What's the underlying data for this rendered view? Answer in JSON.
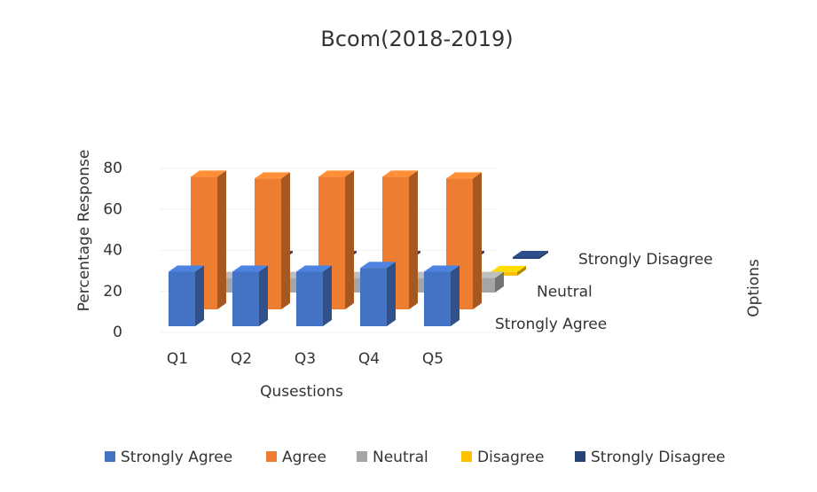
{
  "chart_data": {
    "type": "bar3d",
    "title": "Bcom(2018-2019)",
    "y_label": "Percentage Response",
    "x_label": "Qusestions",
    "z_label": "Options",
    "categories": [
      "Q1",
      "Q2",
      "Q3",
      "Q4",
      "Q5"
    ],
    "depth_labels": [
      "Strongly Agree",
      null,
      "Neutral",
      null,
      "Strongly Disagree"
    ],
    "series": [
      {
        "name": "Strongly Agree",
        "color": "#4472c4",
        "values": [
          30,
          30,
          30,
          32,
          30
        ]
      },
      {
        "name": "Agree",
        "color": "#ed7d31",
        "values": [
          73,
          72,
          73,
          73,
          72
        ]
      },
      {
        "name": "Neutral",
        "color": "#a5a5a5",
        "values": [
          8,
          8,
          8,
          8,
          8
        ]
      },
      {
        "name": "Disagree",
        "color": "#ffc000",
        "values": [
          2,
          2,
          2,
          2,
          2
        ]
      },
      {
        "name": "Strongly Disagree",
        "color": "#264478",
        "values": [
          1,
          1,
          1,
          1,
          1
        ]
      }
    ],
    "ylim": [
      0,
      80
    ],
    "yticks": [
      0,
      20,
      40,
      60,
      80
    ],
    "legend": "bottom"
  }
}
